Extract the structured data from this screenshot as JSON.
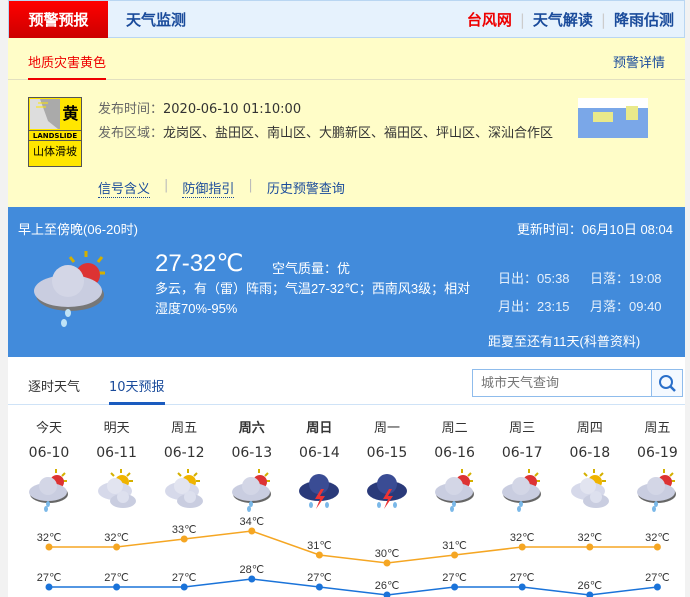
{
  "nav": {
    "active": "预警预报",
    "monitor": "天气监测",
    "typhoon": "台风网",
    "interpret": "天气解读",
    "rain": "降雨估测",
    "sep": "|"
  },
  "warning": {
    "title": "地质灾害黄色",
    "detail": "预警详情",
    "sign": {
      "level": "黄",
      "en": "LANDSLIDE",
      "cn": "山体滑坡"
    },
    "time_label": "发布时间：",
    "time": "2020-06-10 01:10:00",
    "area_label": "发布区域：",
    "area": "龙岗区、盐田区、南山区、大鹏新区、福田区、坪山区、深汕合作区",
    "links": [
      "信号含义",
      "防御指引",
      "历史预警查询"
    ]
  },
  "today": {
    "period": "早上至傍晚(06-20时)",
    "updated": "更新时间：06月10日 08:04",
    "temp": "27-32℃",
    "aq": "空气质量：优",
    "desc": "多云，有（雷）阵雨；气温27-32℃；西南风3级；相对湿度70%-95%",
    "sunrise": "日出：05:38",
    "sunset": "日落：19:08",
    "moonrise": "月出：23:15",
    "moonset": "月落：09:40",
    "solstice": "距夏至还有11天(科普资料)",
    "icon": "partly-cloudy-rain"
  },
  "tabs": {
    "hourly": "逐时天气",
    "tenday": "10天预报"
  },
  "search": {
    "placeholder": "城市天气查询"
  },
  "forecast": [
    {
      "week": "今天",
      "date": "06-10",
      "icon": "rain",
      "bold": false
    },
    {
      "week": "明天",
      "date": "06-11",
      "icon": "cloudy",
      "bold": false
    },
    {
      "week": "周五",
      "date": "06-12",
      "icon": "cloudy",
      "bold": false
    },
    {
      "week": "周六",
      "date": "06-13",
      "icon": "rain",
      "bold": true
    },
    {
      "week": "周日",
      "date": "06-14",
      "icon": "thunder",
      "bold": true
    },
    {
      "week": "周一",
      "date": "06-15",
      "icon": "thunder",
      "bold": false
    },
    {
      "week": "周二",
      "date": "06-16",
      "icon": "rain",
      "bold": false
    },
    {
      "week": "周三",
      "date": "06-17",
      "icon": "rain",
      "bold": false
    },
    {
      "week": "周四",
      "date": "06-18",
      "icon": "cloudy",
      "bold": false
    },
    {
      "week": "周五",
      "date": "06-19",
      "icon": "rain",
      "bold": false
    }
  ],
  "chart_data": {
    "type": "line",
    "categories": [
      "06-10",
      "06-11",
      "06-12",
      "06-13",
      "06-14",
      "06-15",
      "06-16",
      "06-17",
      "06-18",
      "06-19"
    ],
    "unit": "℃",
    "series": [
      {
        "values": [
          32,
          32,
          33,
          34,
          31,
          30,
          31,
          32,
          32,
          32
        ],
        "color": "#f5a623"
      },
      {
        "values": [
          27,
          27,
          27,
          28,
          27,
          26,
          27,
          27,
          26,
          27
        ],
        "color": "#1a73d9"
      }
    ]
  }
}
